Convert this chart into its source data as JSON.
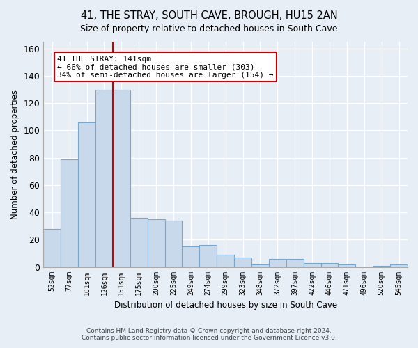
{
  "title": "41, THE STRAY, SOUTH CAVE, BROUGH, HU15 2AN",
  "subtitle": "Size of property relative to detached houses in South Cave",
  "xlabel": "Distribution of detached houses by size in South Cave",
  "ylabel": "Number of detached properties",
  "bar_color": "#c8d9ec",
  "bar_edge_color": "#7aa8cc",
  "background_color": "#e8eef6",
  "grid_color": "#ffffff",
  "categories": [
    "52sqm",
    "77sqm",
    "101sqm",
    "126sqm",
    "151sqm",
    "175sqm",
    "200sqm",
    "225sqm",
    "249sqm",
    "274sqm",
    "299sqm",
    "323sqm",
    "348sqm",
    "372sqm",
    "397sqm",
    "422sqm",
    "446sqm",
    "471sqm",
    "496sqm",
    "520sqm",
    "545sqm"
  ],
  "values": [
    28,
    79,
    106,
    130,
    130,
    36,
    35,
    34,
    15,
    16,
    9,
    7,
    2,
    6,
    6,
    3,
    3,
    2,
    0,
    1,
    2
  ],
  "red_line_x": 4.5,
  "annotation_text_line1": "41 THE STRAY: 141sqm",
  "annotation_text_line2": "← 66% of detached houses are smaller (303)",
  "annotation_text_line3": "34% of semi-detached houses are larger (154) →",
  "annotation_box_color": "#ffffff",
  "annotation_border_color": "#cc0000",
  "red_line_color": "#cc0000",
  "footer_line1": "Contains HM Land Registry data © Crown copyright and database right 2024.",
  "footer_line2": "Contains public sector information licensed under the Government Licence v3.0.",
  "ylim": [
    0,
    165
  ],
  "yticks": [
    0,
    20,
    40,
    60,
    80,
    100,
    120,
    140,
    160
  ]
}
